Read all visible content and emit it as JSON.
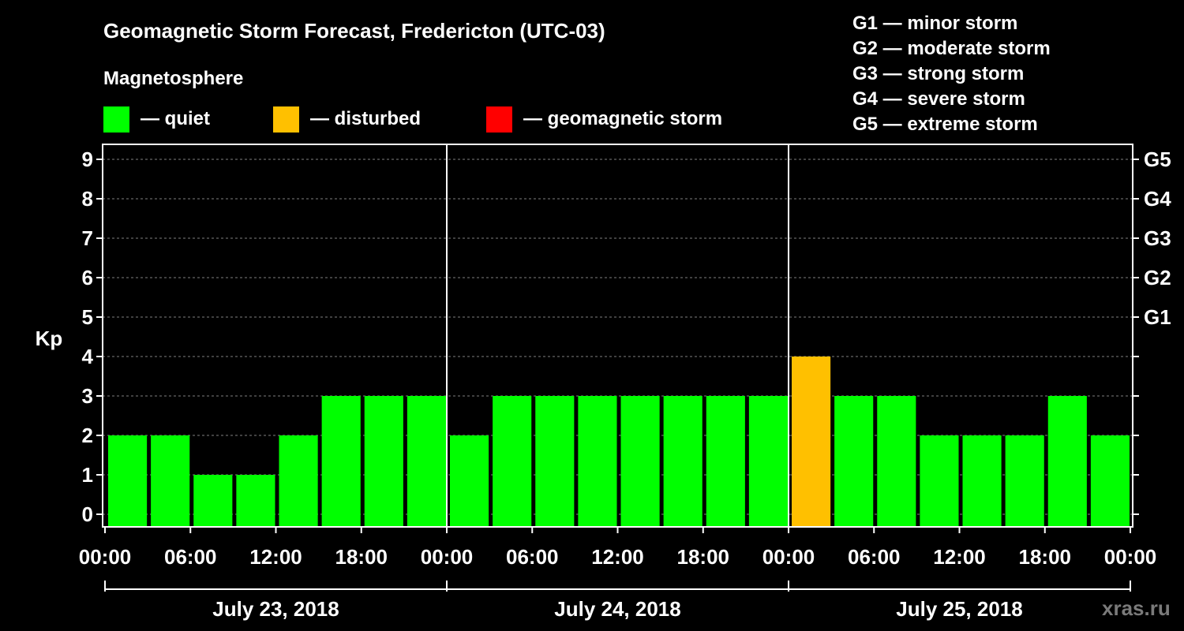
{
  "title": "Geomagnetic Storm Forecast, Fredericton (UTC-03)",
  "magnetosphere": {
    "heading": "Magnetosphere",
    "legend": [
      {
        "label": "— quiet",
        "color": "#00ff00"
      },
      {
        "label": "— disturbed",
        "color": "#ffc000"
      },
      {
        "label": "— geomagnetic storm",
        "color": "#ff0000"
      }
    ]
  },
  "storm_scale": [
    "G1 — minor storm",
    "G2 — moderate storm",
    "G3 — strong storm",
    "G4 — severe storm",
    "G5 — extreme storm"
  ],
  "watermark": "xras.ru",
  "chart_data": {
    "type": "bar",
    "title": "Geomagnetic Storm Forecast, Fredericton (UTC-03)",
    "ylabel": "Kp",
    "ylim": [
      0,
      9
    ],
    "yticks": [
      "0",
      "1",
      "2",
      "3",
      "4",
      "5",
      "6",
      "7",
      "8",
      "9"
    ],
    "right_axis_labels": [
      {
        "kp": 5,
        "label": "G1"
      },
      {
        "kp": 6,
        "label": "G2"
      },
      {
        "kp": 7,
        "label": "G3"
      },
      {
        "kp": 8,
        "label": "G4"
      },
      {
        "kp": 9,
        "label": "G5"
      }
    ],
    "xticks": [
      "00:00",
      "06:00",
      "12:00",
      "18:00",
      "00:00",
      "06:00",
      "12:00",
      "18:00",
      "00:00",
      "06:00",
      "12:00",
      "18:00",
      "00:00"
    ],
    "days": [
      "July 23, 2018",
      "July 24, 2018",
      "July 25, 2018"
    ],
    "bin_hours": 3,
    "values": [
      2,
      2,
      1,
      1,
      2,
      3,
      3,
      3,
      2,
      3,
      3,
      3,
      3,
      3,
      3,
      3,
      4,
      3,
      3,
      2,
      2,
      2,
      3,
      2
    ],
    "levels": [
      "quiet",
      "quiet",
      "quiet",
      "quiet",
      "quiet",
      "quiet",
      "quiet",
      "quiet",
      "quiet",
      "quiet",
      "quiet",
      "quiet",
      "quiet",
      "quiet",
      "quiet",
      "quiet",
      "disturbed",
      "quiet",
      "quiet",
      "quiet",
      "quiet",
      "quiet",
      "quiet",
      "quiet"
    ],
    "level_colors": {
      "quiet": "#00ff00",
      "disturbed": "#ffc000",
      "storm": "#ff0000"
    },
    "grid_color": "#808080"
  }
}
